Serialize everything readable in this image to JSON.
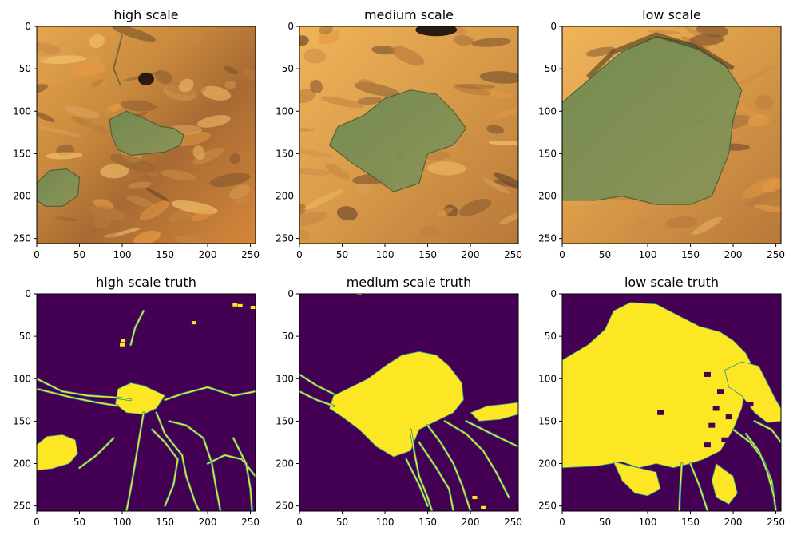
{
  "chart_data": [
    {
      "type": "image",
      "title": "high scale",
      "image_kind": "satellite-rgb",
      "xlim": [
        0,
        256
      ],
      "ylim": [
        256,
        0
      ],
      "xticks": [
        0,
        50,
        100,
        150,
        200,
        250
      ],
      "yticks": [
        0,
        50,
        100,
        150,
        200,
        250
      ],
      "water_region": {
        "lake": [
          [
            85,
            110
          ],
          [
            105,
            100
          ],
          [
            125,
            108
          ],
          [
            145,
            118
          ],
          [
            160,
            120
          ],
          [
            172,
            128
          ],
          [
            168,
            140
          ],
          [
            150,
            148
          ],
          [
            130,
            150
          ],
          [
            110,
            152
          ],
          [
            95,
            145
          ],
          [
            88,
            130
          ]
        ],
        "pond": [
          [
            0,
            185
          ],
          [
            15,
            170
          ],
          [
            35,
            168
          ],
          [
            50,
            178
          ],
          [
            48,
            200
          ],
          [
            30,
            212
          ],
          [
            10,
            212
          ],
          [
            0,
            205
          ]
        ]
      }
    },
    {
      "type": "image",
      "title": "medium scale",
      "image_kind": "satellite-rgb",
      "xlim": [
        0,
        256
      ],
      "ylim": [
        256,
        0
      ],
      "xticks": [
        0,
        50,
        100,
        150,
        200,
        250
      ],
      "yticks": [
        0,
        50,
        100,
        150,
        200,
        250
      ],
      "water_region": {
        "lake": [
          [
            45,
            118
          ],
          [
            75,
            105
          ],
          [
            100,
            85
          ],
          [
            130,
            75
          ],
          [
            160,
            80
          ],
          [
            180,
            100
          ],
          [
            195,
            120
          ],
          [
            180,
            140
          ],
          [
            150,
            150
          ],
          [
            140,
            185
          ],
          [
            110,
            195
          ],
          [
            90,
            180
          ],
          [
            60,
            160
          ],
          [
            35,
            140
          ]
        ]
      }
    },
    {
      "type": "image",
      "title": "low scale",
      "image_kind": "satellite-rgb",
      "xlim": [
        0,
        256
      ],
      "ylim": [
        256,
        0
      ],
      "xticks": [
        0,
        50,
        100,
        150,
        200,
        250
      ],
      "yticks": [
        0,
        50,
        100,
        150,
        200,
        250
      ],
      "water_region": {
        "lake": [
          [
            0,
            90
          ],
          [
            40,
            55
          ],
          [
            70,
            30
          ],
          [
            110,
            12
          ],
          [
            150,
            20
          ],
          [
            190,
            45
          ],
          [
            210,
            75
          ],
          [
            200,
            110
          ],
          [
            195,
            150
          ],
          [
            175,
            200
          ],
          [
            150,
            210
          ],
          [
            110,
            210
          ],
          [
            70,
            200
          ],
          [
            40,
            205
          ],
          [
            0,
            205
          ]
        ]
      }
    },
    {
      "type": "heatmap",
      "title": "high scale truth",
      "colormap": "viridis",
      "background_color": "#440154",
      "foreground_color": "#fde725",
      "edge_color": "#21918c",
      "xlim": [
        0,
        256
      ],
      "ylim": [
        256,
        0
      ],
      "xticks": [
        0,
        50,
        100,
        150,
        200,
        250
      ],
      "yticks": [
        0,
        50,
        100,
        150,
        200,
        250
      ],
      "regions": [
        [
          [
            95,
            112
          ],
          [
            110,
            105
          ],
          [
            125,
            108
          ],
          [
            140,
            115
          ],
          [
            150,
            120
          ],
          [
            140,
            135
          ],
          [
            125,
            142
          ],
          [
            105,
            140
          ],
          [
            92,
            130
          ]
        ],
        [
          [
            0,
            178
          ],
          [
            12,
            168
          ],
          [
            30,
            166
          ],
          [
            45,
            172
          ],
          [
            48,
            188
          ],
          [
            38,
            200
          ],
          [
            18,
            206
          ],
          [
            0,
            208
          ]
        ]
      ],
      "channels": [
        [
          [
            0,
            100
          ],
          [
            30,
            115
          ],
          [
            60,
            120
          ],
          [
            90,
            122
          ],
          [
            110,
            125
          ]
        ],
        [
          [
            0,
            112
          ],
          [
            40,
            122
          ],
          [
            70,
            128
          ],
          [
            95,
            132
          ]
        ],
        [
          [
            150,
            125
          ],
          [
            170,
            118
          ],
          [
            200,
            110
          ],
          [
            230,
            120
          ],
          [
            256,
            115
          ]
        ],
        [
          [
            140,
            140
          ],
          [
            150,
            165
          ],
          [
            170,
            190
          ],
          [
            175,
            215
          ],
          [
            185,
            245
          ],
          [
            190,
            256
          ]
        ],
        [
          [
            155,
            150
          ],
          [
            175,
            155
          ],
          [
            195,
            170
          ],
          [
            205,
            200
          ],
          [
            210,
            230
          ],
          [
            215,
            256
          ]
        ],
        [
          [
            125,
            140
          ],
          [
            120,
            170
          ],
          [
            115,
            200
          ],
          [
            110,
            230
          ],
          [
            105,
            256
          ]
        ],
        [
          [
            200,
            200
          ],
          [
            220,
            190
          ],
          [
            240,
            195
          ],
          [
            256,
            215
          ]
        ],
        [
          [
            135,
            160
          ],
          [
            150,
            175
          ],
          [
            165,
            195
          ],
          [
            160,
            225
          ],
          [
            150,
            250
          ]
        ],
        [
          [
            230,
            170
          ],
          [
            245,
            200
          ],
          [
            250,
            230
          ],
          [
            252,
            256
          ]
        ],
        [
          [
            90,
            170
          ],
          [
            70,
            190
          ],
          [
            50,
            205
          ]
        ],
        [
          [
            125,
            20
          ],
          [
            115,
            40
          ],
          [
            110,
            60
          ]
        ]
      ],
      "specks": [
        [
          232,
          13
        ],
        [
          238,
          14
        ],
        [
          184,
          34
        ],
        [
          101,
          55
        ],
        [
          100,
          60
        ],
        [
          253,
          16
        ]
      ]
    },
    {
      "type": "heatmap",
      "title": "medium scale truth",
      "colormap": "viridis",
      "background_color": "#440154",
      "foreground_color": "#fde725",
      "edge_color": "#21918c",
      "xlim": [
        0,
        256
      ],
      "ylim": [
        256,
        0
      ],
      "xticks": [
        0,
        50,
        100,
        150,
        200,
        250
      ],
      "yticks": [
        0,
        50,
        100,
        150,
        200,
        250
      ],
      "regions": [
        [
          [
            40,
            120
          ],
          [
            60,
            110
          ],
          [
            80,
            100
          ],
          [
            100,
            85
          ],
          [
            120,
            72
          ],
          [
            140,
            68
          ],
          [
            160,
            72
          ],
          [
            175,
            85
          ],
          [
            190,
            105
          ],
          [
            192,
            125
          ],
          [
            180,
            140
          ],
          [
            160,
            150
          ],
          [
            140,
            160
          ],
          [
            130,
            185
          ],
          [
            110,
            192
          ],
          [
            90,
            180
          ],
          [
            70,
            160
          ],
          [
            50,
            145
          ],
          [
            35,
            135
          ]
        ],
        [
          [
            200,
            140
          ],
          [
            220,
            132
          ],
          [
            240,
            130
          ],
          [
            256,
            128
          ],
          [
            256,
            142
          ],
          [
            235,
            148
          ],
          [
            210,
            150
          ]
        ]
      ],
      "channels": [
        [
          [
            0,
            95
          ],
          [
            20,
            108
          ],
          [
            40,
            118
          ]
        ],
        [
          [
            0,
            115
          ],
          [
            20,
            125
          ],
          [
            40,
            132
          ]
        ],
        [
          [
            130,
            160
          ],
          [
            135,
            190
          ],
          [
            140,
            215
          ],
          [
            150,
            240
          ],
          [
            155,
            256
          ]
        ],
        [
          [
            150,
            155
          ],
          [
            165,
            175
          ],
          [
            180,
            200
          ],
          [
            190,
            225
          ],
          [
            200,
            256
          ]
        ],
        [
          [
            170,
            150
          ],
          [
            195,
            165
          ],
          [
            215,
            185
          ],
          [
            230,
            210
          ],
          [
            245,
            240
          ]
        ],
        [
          [
            140,
            175
          ],
          [
            160,
            205
          ],
          [
            175,
            230
          ],
          [
            180,
            256
          ]
        ],
        [
          [
            195,
            150
          ],
          [
            215,
            160
          ],
          [
            235,
            170
          ],
          [
            256,
            180
          ]
        ],
        [
          [
            125,
            195
          ],
          [
            140,
            225
          ],
          [
            150,
            250
          ]
        ]
      ],
      "specks": [
        [
          70,
          0
        ],
        [
          205,
          240
        ],
        [
          215,
          252
        ]
      ]
    },
    {
      "type": "heatmap",
      "title": "low scale truth",
      "colormap": "viridis",
      "background_color": "#440154",
      "foreground_color": "#fde725",
      "edge_color": "#21918c",
      "xlim": [
        0,
        256
      ],
      "ylim": [
        256,
        0
      ],
      "xticks": [
        0,
        50,
        100,
        150,
        200,
        250
      ],
      "yticks": [
        0,
        50,
        100,
        150,
        200,
        250
      ],
      "regions": [
        [
          [
            0,
            78
          ],
          [
            30,
            60
          ],
          [
            50,
            42
          ],
          [
            60,
            20
          ],
          [
            80,
            10
          ],
          [
            110,
            12
          ],
          [
            135,
            25
          ],
          [
            160,
            38
          ],
          [
            185,
            45
          ],
          [
            200,
            55
          ],
          [
            215,
            70
          ],
          [
            225,
            90
          ],
          [
            215,
            110
          ],
          [
            210,
            135
          ],
          [
            200,
            160
          ],
          [
            185,
            185
          ],
          [
            165,
            195
          ],
          [
            150,
            200
          ],
          [
            130,
            205
          ],
          [
            110,
            200
          ],
          [
            90,
            205
          ],
          [
            70,
            198
          ],
          [
            40,
            203
          ],
          [
            0,
            205
          ]
        ],
        [
          [
            190,
            90
          ],
          [
            210,
            80
          ],
          [
            230,
            85
          ],
          [
            240,
            105
          ],
          [
            250,
            125
          ],
          [
            256,
            135
          ],
          [
            256,
            150
          ],
          [
            240,
            152
          ],
          [
            225,
            140
          ],
          [
            210,
            120
          ],
          [
            195,
            110
          ]
        ],
        [
          [
            60,
            198
          ],
          [
            70,
            220
          ],
          [
            85,
            235
          ],
          [
            100,
            238
          ],
          [
            115,
            230
          ],
          [
            110,
            210
          ]
        ],
        [
          [
            180,
            200
          ],
          [
            200,
            215
          ],
          [
            205,
            235
          ],
          [
            195,
            248
          ],
          [
            180,
            240
          ],
          [
            175,
            220
          ]
        ]
      ],
      "channels": [
        [
          [
            140,
            200
          ],
          [
            138,
            230
          ],
          [
            137,
            256
          ]
        ],
        [
          [
            150,
            200
          ],
          [
            160,
            225
          ],
          [
            170,
            256
          ]
        ],
        [
          [
            200,
            160
          ],
          [
            220,
            175
          ],
          [
            235,
            195
          ],
          [
            245,
            220
          ],
          [
            250,
            256
          ]
        ],
        [
          [
            215,
            165
          ],
          [
            230,
            185
          ],
          [
            240,
            210
          ],
          [
            248,
            240
          ]
        ],
        [
          [
            225,
            150
          ],
          [
            245,
            160
          ],
          [
            256,
            175
          ]
        ]
      ],
      "holes": [
        [
          170,
          95
        ],
        [
          185,
          115
        ],
        [
          180,
          135
        ],
        [
          195,
          145
        ],
        [
          175,
          155
        ],
        [
          190,
          172
        ],
        [
          205,
          188
        ],
        [
          170,
          178
        ],
        [
          115,
          140
        ],
        [
          220,
          130
        ]
      ]
    }
  ]
}
